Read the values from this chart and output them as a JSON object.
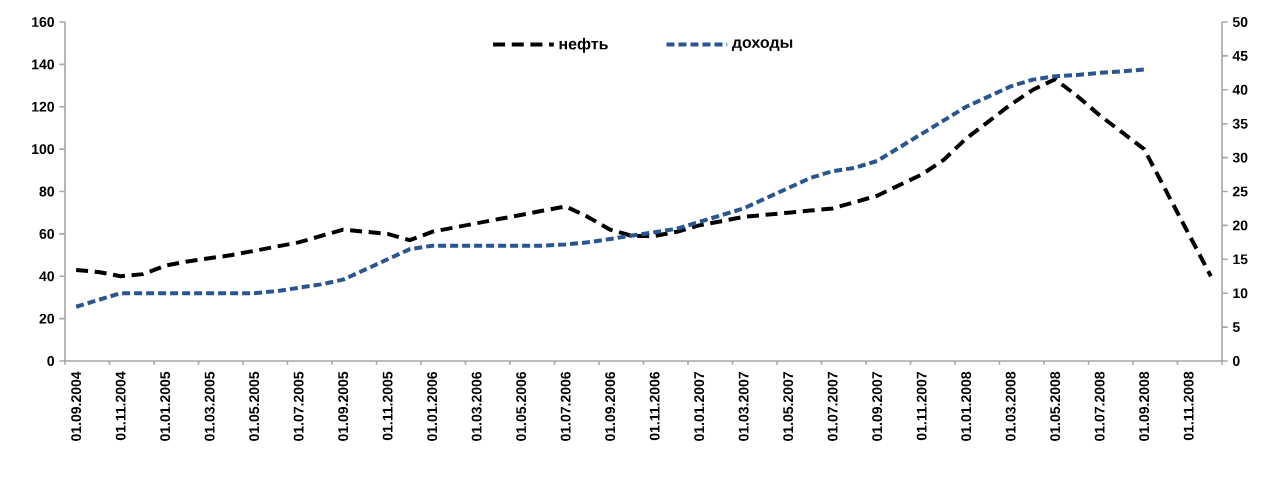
{
  "chart_data": {
    "type": "line",
    "categories": [
      "01.09.2004",
      null,
      "01.11.2004",
      null,
      "01.01.2005",
      null,
      "01.03.2005",
      null,
      "01.05.2005",
      null,
      "01.07.2005",
      null,
      "01.09.2005",
      null,
      "01.11.2005",
      null,
      "01.01.2006",
      null,
      "01.03.2006",
      null,
      "01.05.2006",
      null,
      "01.07.2006",
      null,
      "01.09.2006",
      null,
      "01.11.2006",
      null,
      "01.01.2007",
      null,
      "01.03.2007",
      null,
      "01.05.2007",
      null,
      "01.07.2007",
      null,
      "01.09.2007",
      null,
      "01.11.2007",
      null,
      "01.01.2008",
      null,
      "01.03.2008",
      null,
      "01.05.2008",
      null,
      "01.07.2008",
      null,
      "01.09.2008",
      null,
      "01.11.2008",
      null
    ],
    "series": [
      {
        "name": "нефть",
        "color": "#000000",
        "line_style": "dashed",
        "values": [
          43,
          42,
          40,
          41,
          45,
          47,
          48.5,
          50,
          52,
          54,
          56,
          59,
          62,
          61,
          60,
          57,
          61,
          63,
          65,
          67,
          69,
          71,
          73,
          68,
          62,
          59,
          59,
          61,
          64,
          66,
          68,
          69,
          70,
          71,
          72,
          75,
          78,
          83,
          88,
          95,
          105,
          113,
          121,
          128,
          133,
          125,
          116,
          108,
          100,
          80,
          60,
          40
        ]
      },
      {
        "name": "доходы",
        "color": "#2a5590",
        "line_style": "dashed",
        "axis": "y2",
        "values": [
          8,
          9,
          10,
          10,
          10,
          10,
          10,
          10,
          10,
          10.3,
          10.8,
          11.3,
          12,
          13.5,
          15,
          16.5,
          17,
          17,
          17,
          17,
          17,
          17,
          17.2,
          17.5,
          18,
          18.5,
          19,
          19.5,
          20.5,
          21.5,
          22.5,
          24,
          25.5,
          27,
          28,
          28.5,
          29.5,
          31.5,
          33.5,
          35.5,
          37.5,
          39,
          40.5,
          41.5,
          42,
          42.2,
          42.5,
          42.7,
          43,
          null,
          null,
          null
        ]
      }
    ],
    "ylim": [
      0,
      160
    ],
    "yticks": [
      0,
      20,
      40,
      60,
      80,
      100,
      120,
      140,
      160
    ],
    "y2lim": [
      0,
      50
    ],
    "y2ticks": [
      0,
      5,
      10,
      15,
      20,
      25,
      30,
      35,
      40,
      45,
      50
    ],
    "grid": false,
    "legend": "top",
    "marker": "none"
  }
}
